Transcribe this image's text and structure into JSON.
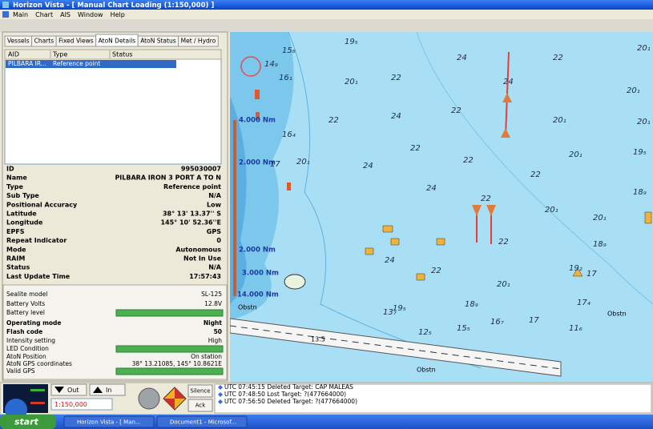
{
  "window": {
    "title": "Horizon Vista - [  Manual Chart Loading    (1:150,000) ]",
    "menu": [
      "Main",
      "Chart",
      "AIS",
      "Window",
      "Help"
    ]
  },
  "tabs": [
    "Vessels",
    "Charts",
    "Fixed Views",
    "AtoN Details",
    "AtoN Status",
    "Met / Hydro"
  ],
  "aton_list": {
    "columns": [
      "AID",
      "Type",
      "Status"
    ],
    "rows": [
      [
        "PILBARA IR...",
        "Reference point"
      ]
    ]
  },
  "details": [
    [
      "ID",
      "995030007"
    ],
    [
      "Name",
      "PILBARA IRON 3 PORT A TO N"
    ],
    [
      "Type",
      "Reference point"
    ],
    [
      "Sub Type",
      "N/A"
    ],
    [
      "Positional Accuracy",
      "Low"
    ],
    [
      "Latitude",
      "38° 13' 13.37'' S"
    ],
    [
      "Longitude",
      "145° 10' 52.36''E"
    ],
    [
      "EPFS",
      "GPS"
    ],
    [
      "Repeat Indicator",
      "0"
    ],
    [
      "Mode",
      "Autonomous"
    ],
    [
      "RAIM",
      "Not In Use"
    ],
    [
      "Status",
      "N/A"
    ],
    [
      "Last Update Time",
      "17:57:43"
    ]
  ],
  "sealite": [
    [
      "Sealite model",
      "SL-125"
    ],
    [
      "Battery Volts",
      "12.8V"
    ],
    [
      "Battery level"
    ],
    [
      "Operating mode",
      "Night"
    ],
    [
      "Flash code",
      "50"
    ],
    [
      "Intensity setting",
      "High"
    ],
    [
      "LED Condition"
    ],
    [
      "AtoN Position",
      "On station"
    ],
    [
      "AtoN GPS coordinates",
      "38° 13.21085, 145° 10.8621E"
    ],
    [
      "Valid GPS"
    ]
  ],
  "controls": {
    "out": "Out",
    "in": "In",
    "scale": "1:150,000",
    "silence": "Silence",
    "ack": "Ack"
  },
  "log": [
    "UTC 07:45:15   Deleted Target: CAP MALEAS",
    "UTC 07:48:50   Lost Target: ?(477664000)",
    "UTC 07:56:50   Deleted Target: ?(477664000)"
  ],
  "taskbar": {
    "start": "start",
    "items": [
      "Horizon Vista - [ Man...",
      "Document1 - Microsof..."
    ]
  },
  "map": {
    "range_labels": [
      "4.000 Nm",
      "2.000 Nm",
      "2.000 Nm",
      "3.000 Nm",
      "14.000 Nm"
    ],
    "notes": [
      "Obstn",
      "Obstn",
      "Obstn",
      "13.5"
    ],
    "soundings": [
      "19₅",
      "24",
      "22",
      "20₁",
      "15₈",
      "14₉",
      "16₁",
      "20₁",
      "22",
      "24",
      "20₁",
      "22",
      "24",
      "22",
      "20₁",
      "20₁",
      "16₄",
      "22",
      "22",
      "20₁",
      "19₅",
      "17",
      "20₁",
      "24",
      "24",
      "22",
      "18₉",
      "22",
      "20₁",
      "20₁",
      "18₉",
      "22",
      "24",
      "22",
      "20₁",
      "19₂",
      "17",
      "18₉",
      "16₇",
      "17",
      "17₄",
      "11₆",
      "15₅",
      "12₅",
      "13₇",
      "19₅"
    ]
  }
}
